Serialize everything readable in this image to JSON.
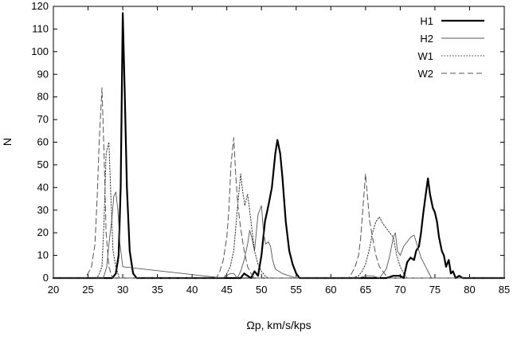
{
  "chart_data": {
    "type": "line",
    "title": "",
    "xlabel": "Ωp, km/s/kps",
    "ylabel": "N",
    "xlim": [
      20,
      85
    ],
    "ylim": [
      0,
      120
    ],
    "xticks": [
      20,
      25,
      30,
      35,
      40,
      45,
      50,
      55,
      60,
      65,
      70,
      75,
      80,
      85
    ],
    "yticks": [
      0,
      10,
      20,
      30,
      40,
      50,
      60,
      70,
      80,
      90,
      100,
      110,
      120
    ],
    "grid": false,
    "legend_position": "top-right",
    "series": [
      {
        "name": "H1",
        "color": "#000000",
        "style": "solid-thick",
        "x": [
          28.5,
          29.0,
          29.4,
          29.7,
          30.0,
          30.3,
          30.6,
          31.0,
          31.5,
          32.0,
          47.0,
          47.5,
          48.0,
          48.5,
          49.0,
          49.5,
          50.0,
          50.5,
          51.0,
          51.5,
          52.0,
          52.3,
          52.7,
          53.0,
          53.5,
          54.0,
          54.5,
          55.0,
          55.5,
          68.0,
          69.0,
          70.0,
          70.5,
          71.0,
          71.5,
          72.0,
          72.3,
          72.7,
          73.0,
          73.3,
          73.6,
          74.0,
          74.3,
          74.7,
          75.0,
          75.3,
          75.6,
          76.0,
          76.3,
          76.6,
          77.0,
          77.3,
          77.6,
          78.0,
          78.5,
          79.0
        ],
        "y": [
          0,
          2,
          10,
          40,
          117,
          80,
          40,
          12,
          2,
          0,
          0,
          2,
          1,
          0,
          3,
          1,
          10,
          25,
          32,
          40,
          55,
          61,
          55,
          45,
          25,
          12,
          6,
          2,
          0,
          0,
          1,
          1,
          0,
          7,
          9,
          8,
          12,
          14,
          20,
          28,
          35,
          44,
          37,
          31,
          29,
          25,
          18,
          12,
          10,
          5,
          8,
          2,
          3,
          0,
          1,
          0
        ]
      },
      {
        "name": "H2",
        "color": "#555555",
        "style": "solid-thin",
        "x": [
          27.2,
          27.7,
          28.0,
          28.4,
          28.7,
          29.0,
          29.3,
          29.6,
          30.0,
          44.5,
          45.5,
          46.0,
          46.5,
          47.0,
          47.5,
          48.0,
          48.3,
          48.6,
          49.0,
          49.5,
          50.0,
          50.3,
          50.6,
          51.0,
          51.3,
          51.6,
          52.0,
          52.5,
          53.0,
          54.0,
          55.0,
          64.0,
          65.0,
          66.0,
          67.0,
          67.5,
          68.0,
          68.5,
          69.0,
          69.3,
          69.6,
          70.0,
          70.5,
          71.0,
          71.5,
          72.0,
          72.5,
          73.0,
          73.5,
          74.0,
          74.5
        ],
        "y": [
          0,
          5,
          15,
          25,
          36,
          38,
          30,
          15,
          5,
          0,
          2,
          2,
          0,
          3,
          8,
          15,
          21,
          18,
          12,
          28,
          32,
          20,
          15,
          16,
          14,
          8,
          4,
          3,
          2,
          1,
          0,
          0,
          1,
          1,
          0,
          2,
          4,
          10,
          18,
          20,
          12,
          10,
          14,
          16,
          18,
          19,
          14,
          9,
          6,
          3,
          0
        ]
      },
      {
        "name": "W1",
        "color": "#333333",
        "style": "dotted",
        "x": [
          26.0,
          26.5,
          27.0,
          27.3,
          27.6,
          28.0,
          28.3,
          28.6,
          29.0,
          29.5,
          44.5,
          45.0,
          45.5,
          46.0,
          46.5,
          47.0,
          47.3,
          47.6,
          48.0,
          48.3,
          48.6,
          49.0,
          49.5,
          50.0,
          50.5,
          51.0,
          63.0,
          64.0,
          64.5,
          65.0,
          65.5,
          66.0,
          66.5,
          67.0,
          67.5,
          68.0,
          68.5,
          69.0,
          69.5,
          70.0,
          70.5,
          71.0
        ],
        "y": [
          0,
          1,
          5,
          25,
          55,
          60,
          35,
          12,
          5,
          0,
          0,
          2,
          5,
          12,
          30,
          46,
          38,
          32,
          37,
          30,
          22,
          12,
          6,
          3,
          1,
          0,
          0,
          1,
          3,
          6,
          12,
          20,
          25,
          27,
          24,
          22,
          20,
          18,
          10,
          5,
          2,
          0
        ]
      },
      {
        "name": "W2",
        "color": "#555555",
        "style": "dashed",
        "x": [
          24.5,
          25.0,
          25.5,
          26.0,
          26.3,
          26.6,
          27.0,
          27.3,
          27.6,
          28.0,
          28.5,
          43.5,
          44.0,
          44.5,
          45.0,
          45.3,
          45.6,
          46.0,
          46.3,
          46.6,
          47.0,
          47.5,
          48.0,
          48.5,
          49.0,
          62.5,
          63.0,
          63.5,
          64.0,
          64.3,
          64.6,
          65.0,
          65.3,
          65.6,
          66.0,
          66.5,
          67.0,
          67.5,
          68.0,
          68.5
        ],
        "y": [
          0,
          2,
          5,
          15,
          35,
          60,
          84,
          55,
          20,
          5,
          0,
          0,
          3,
          8,
          18,
          30,
          50,
          62,
          45,
          32,
          22,
          12,
          5,
          2,
          0,
          0,
          2,
          5,
          10,
          18,
          30,
          46,
          35,
          25,
          18,
          10,
          5,
          3,
          1,
          0
        ]
      }
    ]
  }
}
